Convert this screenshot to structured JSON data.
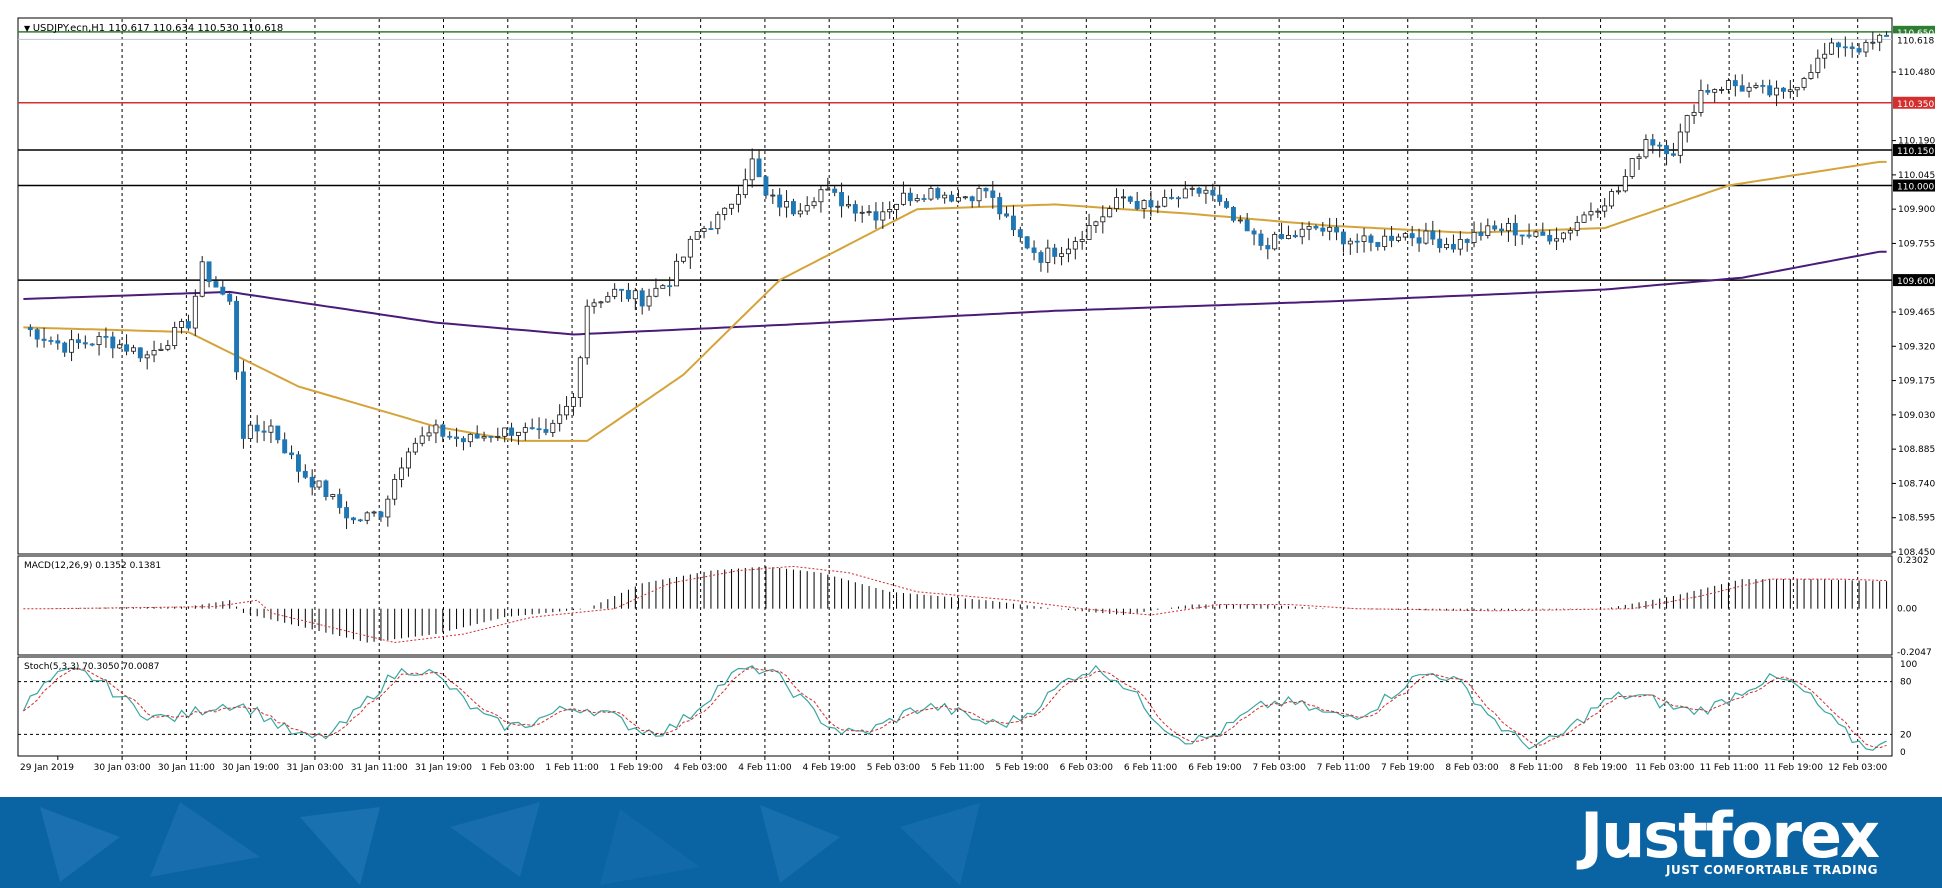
{
  "header": {
    "symbol": "USDJPY.ecn,H1",
    "ohlc": "110.617 110.634 110.530 110.618"
  },
  "macd_label": "MACD(12,26,9) 0.1352 0.1381",
  "stoch_label": "Stoch(5,3,3) 70.3050 70.0087",
  "brand": {
    "name": "Justforex",
    "tagline": "JUST COMFORTABLE TRADING"
  },
  "colors": {
    "background": "#ffffff",
    "candle_up": "#ffffff",
    "candle_down": "#1f77b4",
    "candle_wick": "#1a1a1a",
    "ma_slow": "#4b1b7a",
    "ma_fast": "#d4a43a",
    "level_green": "#2e7d32",
    "level_red": "#d32f2f",
    "level_black": "#000000",
    "stoch_main": "#3aa6a0",
    "stoch_signal": "#d32f2f",
    "brand_blue": "#0a63a3"
  },
  "chart_data": [
    {
      "type": "candlestick",
      "title": "USDJPY.ecn,H1",
      "ylim": [
        108.45,
        110.7
      ],
      "yticks": [
        "110.480",
        "110.190",
        "110.045",
        "109.900",
        "109.755",
        "109.465",
        "109.320",
        "109.175",
        "109.030",
        "108.885",
        "108.740",
        "108.595",
        "108.450"
      ],
      "x_labels": [
        "29 Jan 2019",
        "30 Jan 03:00",
        "30 Jan 11:00",
        "30 Jan 19:00",
        "31 Jan 03:00",
        "31 Jan 11:00",
        "31 Jan 19:00",
        "1 Feb 03:00",
        "1 Feb 11:00",
        "1 Feb 19:00",
        "4 Feb 03:00",
        "4 Feb 11:00",
        "4 Feb 19:00",
        "5 Feb 03:00",
        "5 Feb 11:00",
        "5 Feb 19:00",
        "6 Feb 03:00",
        "6 Feb 11:00",
        "6 Feb 19:00",
        "7 Feb 03:00",
        "7 Feb 11:00",
        "7 Feb 19:00",
        "8 Feb 03:00",
        "8 Feb 11:00",
        "8 Feb 19:00",
        "11 Feb 03:00",
        "11 Feb 11:00",
        "11 Feb 19:00",
        "12 Feb 03:00"
      ],
      "horizontal_levels": [
        {
          "value": 110.65,
          "label": "110.650",
          "color": "green"
        },
        {
          "value": 110.618,
          "label": "110.618",
          "color": "current"
        },
        {
          "value": 110.35,
          "label": "110.350",
          "color": "red"
        },
        {
          "value": 110.15,
          "label": "110.150",
          "color": "black"
        },
        {
          "value": 110.0,
          "label": "110.000",
          "color": "black"
        },
        {
          "value": 109.6,
          "label": "109.600",
          "color": "black"
        }
      ],
      "close_series_approx": [
        [
          0,
          109.4
        ],
        [
          6,
          109.32
        ],
        [
          12,
          109.35
        ],
        [
          18,
          109.28
        ],
        [
          24,
          109.42
        ],
        [
          26,
          109.65
        ],
        [
          30,
          109.5
        ],
        [
          32,
          108.95
        ],
        [
          36,
          108.98
        ],
        [
          40,
          108.8
        ],
        [
          44,
          108.7
        ],
        [
          48,
          108.58
        ],
        [
          52,
          108.62
        ],
        [
          56,
          108.9
        ],
        [
          60,
          108.96
        ],
        [
          64,
          108.92
        ],
        [
          68,
          108.95
        ],
        [
          72,
          108.97
        ],
        [
          76,
          108.93
        ],
        [
          80,
          109.1
        ],
        [
          82,
          109.5
        ],
        [
          86,
          109.55
        ],
        [
          90,
          109.52
        ],
        [
          94,
          109.6
        ],
        [
          98,
          109.8
        ],
        [
          102,
          109.88
        ],
        [
          106,
          110.1
        ],
        [
          108,
          109.95
        ],
        [
          112,
          109.9
        ],
        [
          116,
          109.98
        ],
        [
          120,
          109.92
        ],
        [
          124,
          109.88
        ],
        [
          128,
          109.95
        ],
        [
          132,
          109.98
        ],
        [
          136,
          109.95
        ],
        [
          140,
          109.98
        ],
        [
          144,
          109.8
        ],
        [
          148,
          109.7
        ],
        [
          152,
          109.75
        ],
        [
          156,
          109.85
        ],
        [
          160,
          109.95
        ],
        [
          164,
          109.9
        ],
        [
          168,
          109.95
        ],
        [
          172,
          109.98
        ],
        [
          176,
          109.85
        ],
        [
          180,
          109.75
        ],
        [
          184,
          109.78
        ],
        [
          188,
          109.82
        ],
        [
          192,
          109.78
        ],
        [
          196,
          109.75
        ],
        [
          200,
          109.8
        ],
        [
          204,
          109.78
        ],
        [
          208,
          109.75
        ],
        [
          212,
          109.8
        ],
        [
          216,
          109.82
        ],
        [
          220,
          109.78
        ],
        [
          224,
          109.8
        ],
        [
          228,
          109.9
        ],
        [
          232,
          109.98
        ],
        [
          236,
          110.2
        ],
        [
          240,
          110.15
        ],
        [
          244,
          110.4
        ],
        [
          248,
          110.43
        ],
        [
          252,
          110.4
        ],
        [
          256,
          110.38
        ],
        [
          260,
          110.5
        ],
        [
          264,
          110.6
        ],
        [
          268,
          110.58
        ],
        [
          270,
          110.618
        ]
      ],
      "ma_fast_approx": [
        [
          0,
          109.4
        ],
        [
          24,
          109.38
        ],
        [
          40,
          109.15
        ],
        [
          60,
          108.98
        ],
        [
          72,
          108.92
        ],
        [
          82,
          108.92
        ],
        [
          96,
          109.2
        ],
        [
          110,
          109.6
        ],
        [
          130,
          109.9
        ],
        [
          150,
          109.92
        ],
        [
          170,
          109.88
        ],
        [
          190,
          109.83
        ],
        [
          210,
          109.8
        ],
        [
          230,
          109.82
        ],
        [
          248,
          110.0
        ],
        [
          270,
          110.1
        ]
      ],
      "ma_slow_approx": [
        [
          0,
          109.52
        ],
        [
          30,
          109.55
        ],
        [
          60,
          109.42
        ],
        [
          80,
          109.37
        ],
        [
          110,
          109.41
        ],
        [
          150,
          109.47
        ],
        [
          190,
          109.51
        ],
        [
          230,
          109.56
        ],
        [
          250,
          109.61
        ],
        [
          270,
          109.72
        ]
      ]
    },
    {
      "type": "bar",
      "title": "MACD(12,26,9) 0.1352 0.1381",
      "ylim": [
        -0.2047,
        0.2302
      ],
      "yticks": [
        "0.2302",
        "0.00",
        "-0.2047"
      ],
      "histogram_approx": [
        [
          0,
          0.0
        ],
        [
          24,
          0.01
        ],
        [
          30,
          0.04
        ],
        [
          32,
          -0.02
        ],
        [
          50,
          -0.16
        ],
        [
          60,
          -0.12
        ],
        [
          70,
          -0.04
        ],
        [
          82,
          0.0
        ],
        [
          90,
          0.12
        ],
        [
          100,
          0.18
        ],
        [
          108,
          0.2
        ],
        [
          116,
          0.17
        ],
        [
          126,
          0.08
        ],
        [
          140,
          0.04
        ],
        [
          150,
          0.0
        ],
        [
          160,
          -0.03
        ],
        [
          170,
          0.02
        ],
        [
          180,
          0.02
        ],
        [
          190,
          0.0
        ],
        [
          210,
          -0.01
        ],
        [
          230,
          0.0
        ],
        [
          240,
          0.06
        ],
        [
          250,
          0.14
        ],
        [
          260,
          0.14
        ],
        [
          270,
          0.13
        ]
      ]
    },
    {
      "type": "line",
      "title": "Stoch(5,3,3) 70.3050 70.0087",
      "ylim": [
        0,
        100
      ],
      "yticks": [
        "100",
        "80",
        "20",
        "0"
      ],
      "levels": [
        80,
        20
      ]
    }
  ]
}
